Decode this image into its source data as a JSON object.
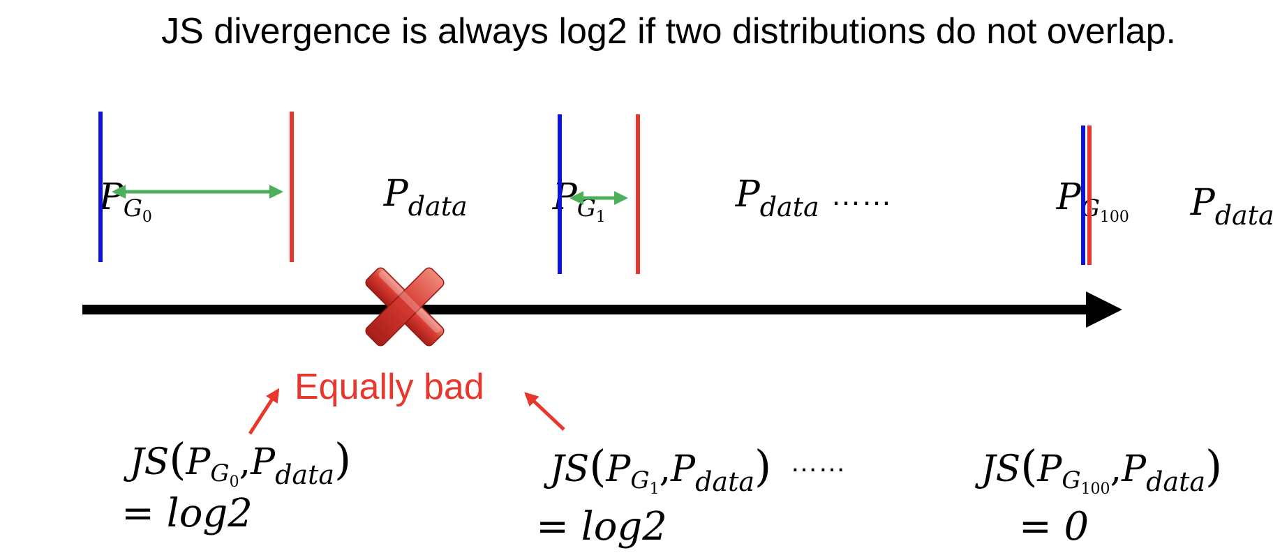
{
  "title": "JS divergence is always log2 if two distributions do not overlap.",
  "symbols": {
    "P": "P",
    "G": "G",
    "data_sub": "data",
    "sub_0": "0",
    "sub_1": "1",
    "sub_100": "100",
    "JS": "JS",
    "open_paren": "(",
    "close_paren": ")",
    "comma": ","
  },
  "ellipsis": "……",
  "annotation": "Equally bad",
  "equations": [
    {
      "result": "= log2"
    },
    {
      "result": "= log2"
    },
    {
      "result": "= 0"
    }
  ],
  "colors": {
    "generator_line": "#0A12E6",
    "data_line": "#E8372C",
    "gap_arrow": "#4CAF5A",
    "axis": "#000000",
    "annotation": "#E8372C",
    "cross": "#D63A32"
  },
  "icons": {
    "cross": "red-x-cross-icon"
  }
}
